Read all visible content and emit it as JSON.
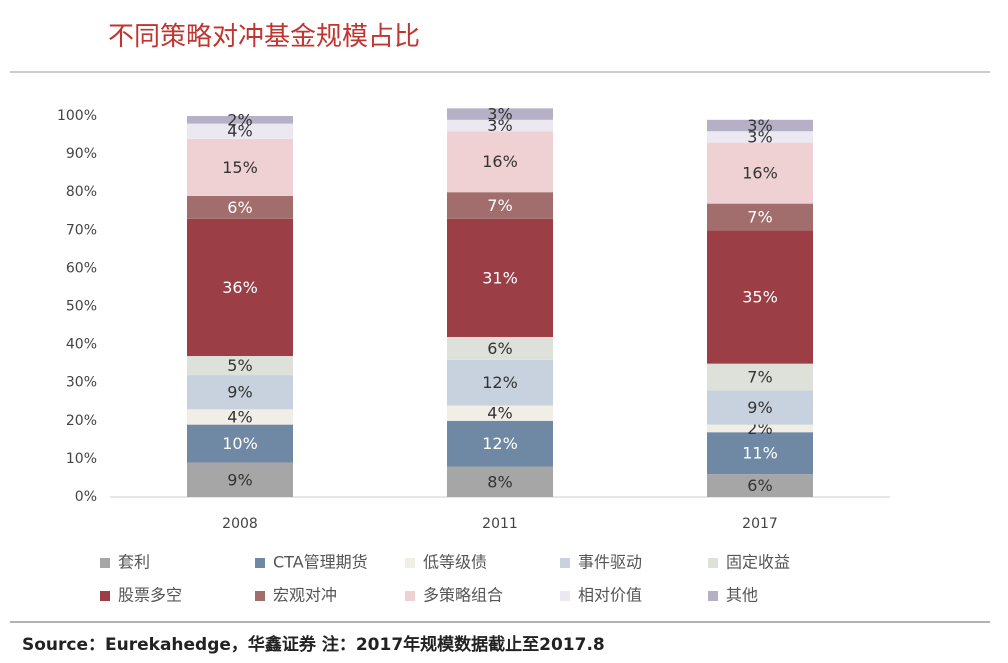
{
  "chart_data": {
    "type": "bar",
    "stacked": true,
    "title": "不同策略对冲基金规模占比",
    "source": "Source：Eurekahedge，华鑫证券  注：2017年规模数据截止至2017.8",
    "categories": [
      "2008",
      "2011",
      "2017"
    ],
    "ylim": [
      0,
      100
    ],
    "yticks": [
      {
        "value": 0,
        "label": "0%"
      },
      {
        "value": 10,
        "label": "10%"
      },
      {
        "value": 20,
        "label": "20%"
      },
      {
        "value": 30,
        "label": "30%"
      },
      {
        "value": 40,
        "label": "40%"
      },
      {
        "value": 50,
        "label": "50%"
      },
      {
        "value": 60,
        "label": "60%"
      },
      {
        "value": 70,
        "label": "70%"
      },
      {
        "value": 80,
        "label": "80%"
      },
      {
        "value": 90,
        "label": "90%"
      },
      {
        "value": 100,
        "label": "100%"
      }
    ],
    "series": [
      {
        "name": "套利",
        "color": "#a6a6a6",
        "values": [
          9,
          8,
          6
        ],
        "value_labels": [
          "9%",
          "8%",
          "6%"
        ]
      },
      {
        "name": "CTA管理期货",
        "color": "#6f88a3",
        "values": [
          10,
          12,
          11
        ],
        "value_labels": [
          "10%",
          "12%",
          "11%"
        ]
      },
      {
        "name": "低等级债",
        "color": "#f1eee6",
        "values": [
          4,
          4,
          2
        ],
        "value_labels": [
          "4%",
          "4%",
          "2%"
        ]
      },
      {
        "name": "事件驱动",
        "color": "#c8d2de",
        "values": [
          9,
          12,
          9
        ],
        "value_labels": [
          "9%",
          "12%",
          "9%"
        ]
      },
      {
        "name": "固定收益",
        "color": "#dde1da",
        "values": [
          5,
          6,
          7
        ],
        "value_labels": [
          "5%",
          "6%",
          "7%"
        ]
      },
      {
        "name": "股票多空",
        "color": "#9b3e46",
        "values": [
          36,
          31,
          35
        ],
        "value_labels": [
          "36%",
          "31%",
          "35%"
        ]
      },
      {
        "name": "宏观对冲",
        "color": "#a26e6d",
        "values": [
          6,
          7,
          7
        ],
        "value_labels": [
          "6%",
          "7%",
          "7%"
        ]
      },
      {
        "name": "多策略组合",
        "color": "#f0d1d3",
        "values": [
          15,
          16,
          16
        ],
        "value_labels": [
          "15%",
          "16%",
          "16%"
        ]
      },
      {
        "name": "相对价值",
        "color": "#ebe8f1",
        "values": [
          4,
          3,
          3
        ],
        "value_labels": [
          "4%",
          "3%",
          "3%"
        ]
      },
      {
        "name": "其他",
        "color": "#b5b0c5",
        "values": [
          2,
          3,
          3
        ],
        "value_labels": [
          "2%",
          "3%",
          "3%"
        ]
      }
    ]
  }
}
